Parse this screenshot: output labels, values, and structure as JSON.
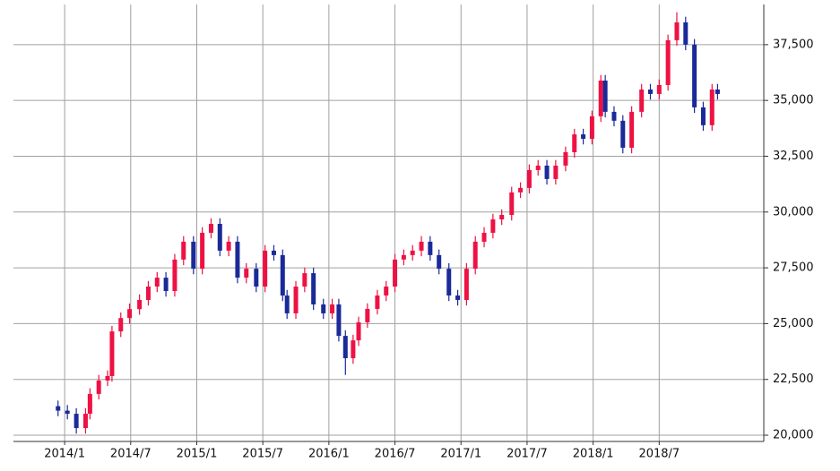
{
  "chart_data": {
    "type": "candlestick",
    "up_color": "#ee1144",
    "down_color": "#1a2a99",
    "xlim": [
      -4.65,
      63.5
    ],
    "xticks": [
      {
        "value": 0,
        "label": "2014/1"
      },
      {
        "value": 6,
        "label": "2014/7"
      },
      {
        "value": 12,
        "label": "2015/1"
      },
      {
        "value": 18,
        "label": "2015/7"
      },
      {
        "value": 24,
        "label": "2016/1"
      },
      {
        "value": 30,
        "label": "2016/7"
      },
      {
        "value": 36,
        "label": "2017/1"
      },
      {
        "value": 42,
        "label": "2017/7"
      },
      {
        "value": 48,
        "label": "2018/1"
      },
      {
        "value": 54,
        "label": "2018/7"
      }
    ],
    "ylim": [
      19720,
      39300
    ],
    "yticks": [
      {
        "value": 20000,
        "label": "20,000"
      },
      {
        "value": 22500,
        "label": "22,500"
      },
      {
        "value": 25000,
        "label": "25,000"
      },
      {
        "value": 27500,
        "label": "27,500"
      },
      {
        "value": 30000,
        "label": "30,000"
      },
      {
        "value": 32500,
        "label": "32,500"
      },
      {
        "value": 35000,
        "label": "35,000"
      },
      {
        "value": 37500,
        "label": "37,500"
      }
    ],
    "grid": true,
    "x": [
      -0.6,
      0.25,
      1.06,
      1.9,
      2.3,
      3.1,
      3.9,
      4.3,
      5.1,
      5.9,
      6.8,
      7.6,
      8.4,
      9.2,
      10.0,
      10.8,
      11.7,
      12.5,
      13.3,
      14.1,
      14.9,
      15.7,
      16.5,
      17.4,
      18.2,
      19.0,
      19.8,
      20.2,
      21.0,
      21.8,
      22.6,
      23.5,
      24.3,
      24.9,
      25.5,
      26.2,
      26.7,
      27.5,
      28.4,
      29.2,
      30.0,
      30.8,
      31.6,
      32.4,
      33.2,
      34.0,
      34.9,
      35.7,
      36.5,
      37.3,
      38.1,
      38.9,
      39.7,
      40.6,
      41.4,
      42.2,
      43.0,
      43.8,
      44.6,
      45.5,
      46.3,
      47.1,
      47.9,
      48.7,
      49.1,
      49.9,
      50.7,
      51.5,
      52.4,
      53.2,
      54.0,
      54.8,
      55.6,
      56.4,
      57.2,
      58.0,
      58.8,
      59.3
    ],
    "open": [
      21300,
      21100,
      20960,
      20320,
      20960,
      21850,
      22450,
      22650,
      24650,
      25250,
      25650,
      26060,
      26660,
      27060,
      26460,
      27870,
      28670,
      27460,
      29070,
      29470,
      28270,
      28670,
      27060,
      27460,
      26660,
      28270,
      28070,
      26260,
      25460,
      26660,
      27260,
      25860,
      25460,
      25860,
      24450,
      23450,
      24250,
      25060,
      25660,
      26260,
      26660,
      27870,
      28070,
      28270,
      28670,
      28070,
      27460,
      26260,
      26060,
      27460,
      28670,
      29070,
      29670,
      29870,
      30880,
      31080,
      31880,
      32080,
      31480,
      32080,
      32680,
      33480,
      33280,
      34290,
      35890,
      34490,
      34090,
      32880,
      34490,
      35490,
      35290,
      35690,
      37700,
      38500,
      37500,
      34690,
      33890,
      35490
    ],
    "high": [
      21550,
      21350,
      21210,
      21210,
      22100,
      22700,
      22900,
      24900,
      25500,
      25900,
      26310,
      26910,
      27310,
      27310,
      28120,
      28920,
      28920,
      29320,
      29720,
      29720,
      28920,
      28920,
      27710,
      27710,
      28520,
      28520,
      28320,
      26510,
      26910,
      27510,
      27510,
      26110,
      26110,
      26110,
      24700,
      24500,
      25310,
      25910,
      26510,
      26910,
      28120,
      28320,
      28520,
      28920,
      28920,
      28320,
      27710,
      26510,
      27710,
      28920,
      29320,
      29920,
      30120,
      31130,
      31330,
      32130,
      32330,
      32330,
      32330,
      32930,
      33730,
      33730,
      34540,
      36140,
      36140,
      34740,
      34340,
      34740,
      35740,
      35740,
      35940,
      37950,
      38950,
      38750,
      37750,
      34940,
      35740,
      35740
    ],
    "low": [
      20850,
      20710,
      20070,
      20070,
      20710,
      21600,
      22200,
      22400,
      24400,
      25000,
      25400,
      25810,
      26410,
      26210,
      26210,
      27620,
      27210,
      27210,
      28820,
      28020,
      28020,
      26810,
      26810,
      26410,
      26410,
      27820,
      26010,
      25210,
      25210,
      26410,
      25610,
      25210,
      25210,
      24200,
      22700,
      23200,
      24000,
      24810,
      25410,
      26010,
      26410,
      27620,
      27820,
      28020,
      27820,
      27210,
      26010,
      25810,
      25810,
      27210,
      28420,
      28820,
      29420,
      29620,
      30630,
      30830,
      31630,
      31230,
      31230,
      31830,
      32430,
      33030,
      33030,
      34040,
      34240,
      33840,
      32630,
      32630,
      34240,
      35040,
      35040,
      35440,
      37450,
      37250,
      34440,
      33640,
      33640,
      35040
    ],
    "close": [
      21100,
      20960,
      20320,
      20960,
      21850,
      22450,
      22650,
      24650,
      25250,
      25650,
      26060,
      26660,
      27060,
      26460,
      27870,
      28670,
      27460,
      29070,
      29470,
      28270,
      28670,
      27060,
      27460,
      26660,
      28270,
      28070,
      26260,
      25460,
      26660,
      27260,
      25860,
      25460,
      25860,
      24450,
      23450,
      24250,
      25060,
      25660,
      26260,
      26660,
      27870,
      28070,
      28270,
      28670,
      28070,
      27460,
      26260,
      26060,
      27460,
      28670,
      29070,
      29670,
      29870,
      30880,
      31080,
      31880,
      32080,
      31480,
      32080,
      32680,
      33480,
      33280,
      34290,
      35890,
      34490,
      34090,
      32880,
      34490,
      35490,
      35290,
      35690,
      37700,
      38500,
      37500,
      34690,
      33890,
      35490,
      35290
    ]
  }
}
